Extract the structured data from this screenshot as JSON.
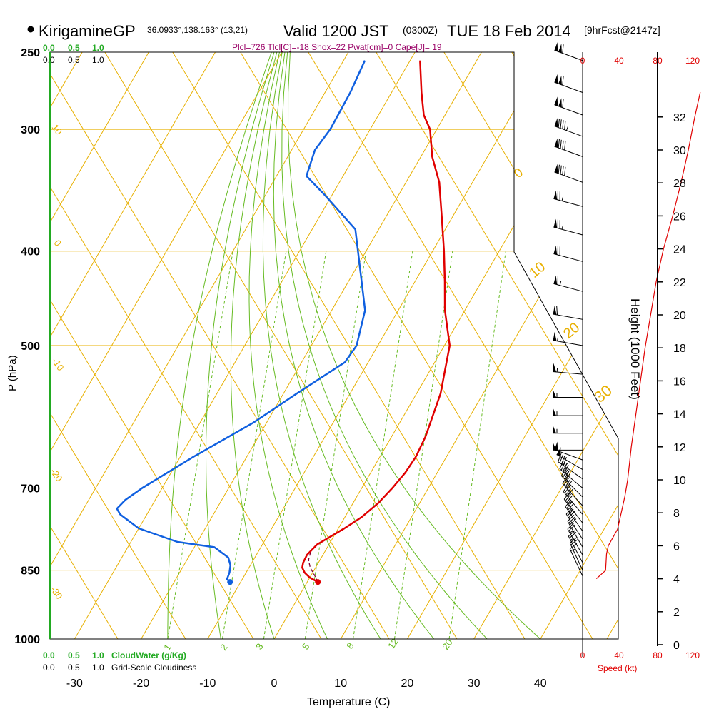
{
  "header": {
    "station": "KirigamineGP",
    "coords": "36.0933°,138.163° (13,21)",
    "valid_time": "Valid 1200 JST",
    "zulu": "(0300Z)",
    "date": "TUE 18 Feb 2014",
    "forecast": "[9hrFcst@2147z]",
    "indices": "Plcl=726 Tlcl[C]=-18 Shox=22 Pwat[cm]=0 Cape[J]= 19"
  },
  "colors": {
    "temperature": "#e00000",
    "dewpoint": "#1060e0",
    "isotherm": "#e8b000",
    "mixing_ratio": "#66bb22",
    "cloud_water": "#22aa22",
    "speed": "#e00000",
    "indices_text": "#990066"
  },
  "cloud_labels": {
    "water_scale": [
      "0.0",
      "0.5",
      "1.0"
    ],
    "cloudiness_scale": [
      "0.0",
      "0.5",
      "1.0"
    ],
    "water_title": "CloudWater (g/Kg)",
    "cloudiness_title": "Grid-Scale Cloudiness",
    "top_water_scale": [
      "0.0",
      "0.5",
      "1.0"
    ],
    "top_cloud_scale": [
      "0.0",
      "0.5",
      "1.0"
    ]
  },
  "speed_labels": {
    "ticks": [
      "0",
      "40",
      "80",
      "120"
    ],
    "title": "Speed (kt)"
  },
  "chart_data": {
    "type": "line",
    "title": "",
    "xlabel": "Temperature (C)",
    "ylabel": "P (hPa)",
    "y2label": "Height (1000 Feet)",
    "x_ticks": [
      -30,
      -20,
      -10,
      0,
      10,
      20,
      30,
      40
    ],
    "p_ticks": [
      250,
      300,
      400,
      500,
      700,
      850,
      1000
    ],
    "height_ticks": [
      0,
      2,
      4,
      6,
      8,
      10,
      12,
      14,
      16,
      18,
      20,
      22,
      24,
      26,
      28,
      30,
      32
    ],
    "mixing_ratio_labels": [
      "1",
      "2",
      "3",
      "5",
      "8",
      "12",
      "20"
    ],
    "skewed_isotherm_labels": [
      "10",
      "0",
      "-10",
      "-20",
      "-30"
    ],
    "adiabat_labels": [
      "0",
      "10",
      "20",
      "30"
    ],
    "series": [
      {
        "name": "Temperature",
        "p": [
          874,
          865,
          855,
          845,
          835,
          820,
          800,
          790,
          770,
          750,
          725,
          700,
          675,
          650,
          620,
          560,
          500,
          460,
          430,
          400,
          370,
          340,
          320,
          300,
          290,
          275,
          255
        ],
        "temp": [
          1.6,
          0.0,
          -1.2,
          -2.0,
          -2.3,
          -2.4,
          -1.8,
          -0.9,
          0.9,
          2.5,
          3.8,
          4.6,
          5.2,
          5.4,
          5.1,
          3.6,
          0.8,
          -3.0,
          -5.5,
          -8.3,
          -11.5,
          -15.0,
          -18.3,
          -21.0,
          -23.2,
          -25.5,
          -28.5
        ]
      },
      {
        "name": "Dewpoint",
        "p": [
          874,
          868,
          855,
          840,
          825,
          805,
          795,
          770,
          745,
          735,
          720,
          700,
          650,
          600,
          560,
          520,
          500,
          460,
          430,
          380,
          350,
          335,
          315,
          300,
          275,
          255
        ],
        "temp": [
          -11.6,
          -12.3,
          -12.5,
          -13.0,
          -14.0,
          -17.0,
          -23.0,
          -30.0,
          -34.0,
          -35.0,
          -34.5,
          -33.0,
          -28.0,
          -22.0,
          -18.0,
          -13.5,
          -13.2,
          -15.0,
          -18.0,
          -23.5,
          -31.2,
          -35.5,
          -36.5,
          -36.0,
          -36.2,
          -36.8
        ]
      },
      {
        "name": "Parcel",
        "p": [
          874,
          860,
          845,
          830,
          815
        ],
        "temp": [
          1.6,
          0.5,
          -0.8,
          -1.7,
          -2.1
        ]
      },
      {
        "name": "Surface parcel",
        "p": [
          874,
          874
        ],
        "temp": [
          1.6,
          -11.6
        ]
      },
      {
        "name": "Wind speed (kt)",
        "height_kft": [
          4.0,
          4.5,
          5.5,
          6.0,
          7.0,
          8.0,
          9.0,
          10.0,
          11.0,
          12.0,
          14.0,
          16.0,
          18.0,
          20.0,
          22.0,
          24.0,
          26.0,
          28.0,
          30.0,
          32.0,
          33.5
        ],
        "speed": [
          15,
          25,
          26,
          28,
          38,
          42,
          46,
          49,
          51,
          53,
          58,
          63,
          68,
          74,
          80,
          88,
          98,
          107,
          115,
          122,
          128
        ]
      }
    ],
    "wind_barbs": [
      {
        "p": 255,
        "speed_kt": 110,
        "dir_deg": 290
      },
      {
        "p": 275,
        "speed_kt": 110,
        "dir_deg": 290
      },
      {
        "p": 290,
        "speed_kt": 110,
        "dir_deg": 290
      },
      {
        "p": 305,
        "speed_kt": 95,
        "dir_deg": 290
      },
      {
        "p": 320,
        "speed_kt": 90,
        "dir_deg": 290
      },
      {
        "p": 340,
        "speed_kt": 90,
        "dir_deg": 290
      },
      {
        "p": 360,
        "speed_kt": 75,
        "dir_deg": 285
      },
      {
        "p": 385,
        "speed_kt": 75,
        "dir_deg": 285
      },
      {
        "p": 410,
        "speed_kt": 70,
        "dir_deg": 285
      },
      {
        "p": 440,
        "speed_kt": 65,
        "dir_deg": 285
      },
      {
        "p": 470,
        "speed_kt": 60,
        "dir_deg": 280
      },
      {
        "p": 500,
        "speed_kt": 55,
        "dir_deg": 280
      },
      {
        "p": 535,
        "speed_kt": 55,
        "dir_deg": 275
      },
      {
        "p": 565,
        "speed_kt": 55,
        "dir_deg": 270
      },
      {
        "p": 590,
        "speed_kt": 55,
        "dir_deg": 270
      },
      {
        "p": 615,
        "speed_kt": 55,
        "dir_deg": 270
      },
      {
        "p": 640,
        "speed_kt": 50,
        "dir_deg": 270
      },
      {
        "p": 655,
        "speed_kt": 50,
        "dir_deg": 290
      },
      {
        "p": 670,
        "speed_kt": 50,
        "dir_deg": 300
      },
      {
        "p": 685,
        "speed_kt": 45,
        "dir_deg": 305
      },
      {
        "p": 700,
        "speed_kt": 45,
        "dir_deg": 310
      },
      {
        "p": 715,
        "speed_kt": 40,
        "dir_deg": 315
      },
      {
        "p": 730,
        "speed_kt": 40,
        "dir_deg": 318
      },
      {
        "p": 745,
        "speed_kt": 40,
        "dir_deg": 320
      },
      {
        "p": 760,
        "speed_kt": 35,
        "dir_deg": 322
      },
      {
        "p": 775,
        "speed_kt": 35,
        "dir_deg": 325
      },
      {
        "p": 790,
        "speed_kt": 30,
        "dir_deg": 327
      },
      {
        "p": 805,
        "speed_kt": 30,
        "dir_deg": 330
      },
      {
        "p": 820,
        "speed_kt": 25,
        "dir_deg": 330
      },
      {
        "p": 835,
        "speed_kt": 25,
        "dir_deg": 332
      },
      {
        "p": 850,
        "speed_kt": 20,
        "dir_deg": 335
      },
      {
        "p": 862,
        "speed_kt": 15,
        "dir_deg": 335
      }
    ]
  }
}
